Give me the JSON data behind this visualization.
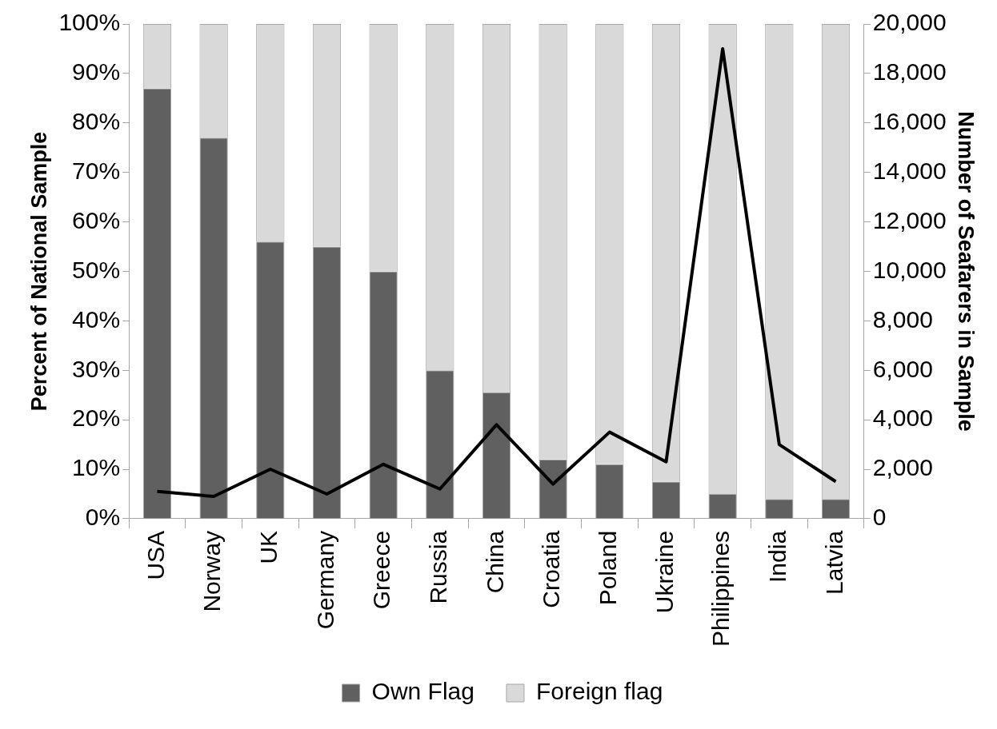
{
  "chart_data": {
    "type": "bar",
    "stacked": true,
    "ylabel": "Percent of National Sample",
    "y2label": "Number of Seafarers in Sample",
    "categories": [
      "USA",
      "Norway",
      "UK",
      "Germany",
      "Greece",
      "Russia",
      "China",
      "Croatia",
      "Poland",
      "Ukraine",
      "Philippines",
      "India",
      "Latvia"
    ],
    "series": [
      {
        "name": "Own Flag",
        "color": "#606060",
        "values": [
          87,
          77,
          56,
          55,
          50,
          30,
          25.5,
          12,
          11,
          7.5,
          5,
          4,
          4
        ]
      },
      {
        "name": "Foreign flag",
        "color": "#d9d9d9",
        "values": [
          13,
          23,
          44,
          45,
          50,
          70,
          74.5,
          88,
          89,
          92.5,
          95,
          96,
          96
        ]
      },
      {
        "type": "line",
        "axis": "y2",
        "color": "#000000",
        "values": [
          1100,
          900,
          2000,
          1000,
          2200,
          1200,
          3800,
          1400,
          3500,
          2300,
          19000,
          3000,
          1500
        ]
      }
    ],
    "ylim": [
      0,
      100
    ],
    "yticks": [
      {
        "value": 0,
        "label": "0%"
      },
      {
        "value": 10,
        "label": "10%"
      },
      {
        "value": 20,
        "label": "20%"
      },
      {
        "value": 30,
        "label": "30%"
      },
      {
        "value": 40,
        "label": "40%"
      },
      {
        "value": 50,
        "label": "50%"
      },
      {
        "value": 60,
        "label": "60%"
      },
      {
        "value": 70,
        "label": "70%"
      },
      {
        "value": 80,
        "label": "80%"
      },
      {
        "value": 90,
        "label": "90%"
      },
      {
        "value": 100,
        "label": "100%"
      }
    ],
    "y2lim": [
      0,
      20000
    ],
    "y2ticks": [
      0,
      {
        "value": 2000,
        "label": "2,000"
      },
      {
        "value": 4000,
        "label": "4,000"
      },
      {
        "value": 6000,
        "label": "6,000"
      },
      {
        "value": 8000,
        "label": "8,000"
      },
      {
        "value": 10000,
        "label": "10,000"
      },
      {
        "value": 12000,
        "label": "12,000"
      },
      {
        "value": 14000,
        "label": "14,000"
      },
      {
        "value": 16000,
        "label": "16,000"
      },
      {
        "value": 18000,
        "label": "18,000"
      },
      {
        "value": 20000,
        "label": "20,000"
      }
    ],
    "grid": false,
    "legend": "bottom",
    "marker": "none",
    "line_style": "solid"
  }
}
